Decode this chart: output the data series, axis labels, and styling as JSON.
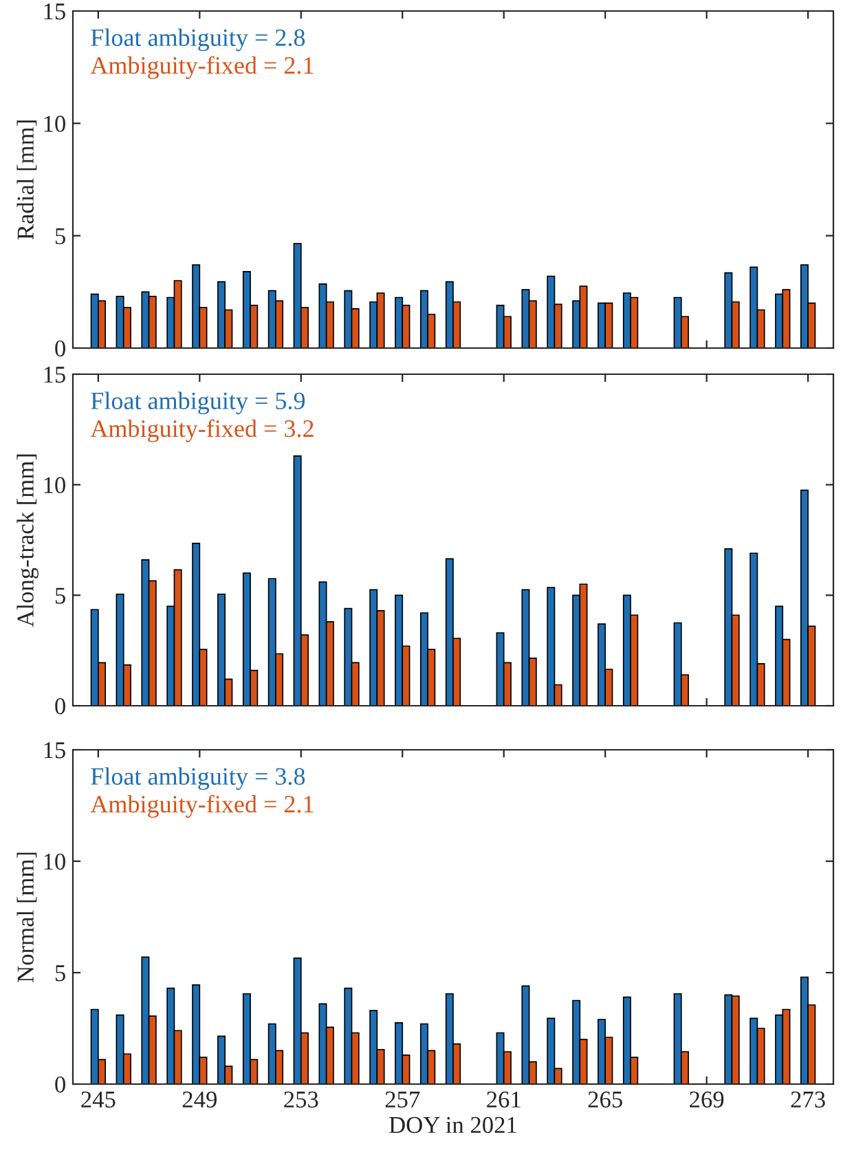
{
  "chart_data": [
    {
      "type": "bar",
      "ylabel": "Radial [mm]",
      "x": [
        245,
        246,
        247,
        248,
        249,
        250,
        251,
        252,
        253,
        254,
        255,
        256,
        257,
        258,
        259,
        261,
        262,
        263,
        264,
        265,
        266,
        268,
        270,
        271,
        272,
        273
      ],
      "series": [
        {
          "name": "Float ambiguity = 2.8",
          "color": "#1f6fb4",
          "values": [
            2.4,
            2.3,
            2.5,
            2.25,
            3.7,
            2.95,
            3.4,
            2.55,
            4.65,
            2.85,
            2.55,
            2.05,
            2.25,
            2.55,
            2.95,
            1.9,
            2.6,
            3.2,
            2.1,
            2.0,
            2.45,
            2.25,
            3.35,
            3.6,
            2.4,
            3.7
          ]
        },
        {
          "name": "Ambiguity-fixed = 2.1",
          "color": "#d95319",
          "values": [
            2.1,
            1.8,
            2.3,
            3.0,
            1.8,
            1.7,
            1.9,
            2.1,
            1.8,
            2.05,
            1.75,
            2.45,
            1.9,
            1.5,
            2.05,
            1.4,
            2.1,
            1.95,
            2.75,
            2.0,
            2.25,
            1.4,
            2.05,
            1.7,
            2.6,
            2.0
          ]
        }
      ],
      "xlim": [
        244,
        274
      ],
      "xticks": [
        245,
        249,
        253,
        257,
        261,
        265,
        269,
        273
      ],
      "ylim": [
        0,
        15
      ],
      "yticks": [
        0,
        5,
        10,
        15
      ],
      "tick_labels": "y",
      "legend": "top left"
    },
    {
      "type": "bar",
      "ylabel": "Along-track [mm]",
      "x": [
        245,
        246,
        247,
        248,
        249,
        250,
        251,
        252,
        253,
        254,
        255,
        256,
        257,
        258,
        259,
        261,
        262,
        263,
        264,
        265,
        266,
        268,
        270,
        271,
        272,
        273
      ],
      "series": [
        {
          "name": "Float ambiguity = 5.9",
          "color": "#1f6fb4",
          "values": [
            4.35,
            5.05,
            6.6,
            4.5,
            7.35,
            5.05,
            6.0,
            5.75,
            11.3,
            5.6,
            4.4,
            5.25,
            5.0,
            4.2,
            6.65,
            3.3,
            5.25,
            5.35,
            5.0,
            3.7,
            5.0,
            3.75,
            7.1,
            6.9,
            4.5,
            9.75
          ]
        },
        {
          "name": "Ambiguity-fixed = 3.2",
          "color": "#d95319",
          "values": [
            1.95,
            1.85,
            5.65,
            6.15,
            2.55,
            1.2,
            1.6,
            2.35,
            3.2,
            3.8,
            1.95,
            4.3,
            2.7,
            2.55,
            3.05,
            1.95,
            2.15,
            0.95,
            5.5,
            1.65,
            4.1,
            1.4,
            4.1,
            1.9,
            3.0,
            3.6
          ]
        }
      ],
      "xlim": [
        244,
        274
      ],
      "xticks": [
        245,
        249,
        253,
        257,
        261,
        265,
        269,
        273
      ],
      "ylim": [
        0,
        15
      ],
      "yticks": [
        0,
        5,
        10,
        15
      ],
      "tick_labels": "y",
      "legend": "top left"
    },
    {
      "type": "bar",
      "ylabel": "Normal [mm]",
      "xlabel": "DOY in 2021",
      "x": [
        245,
        246,
        247,
        248,
        249,
        250,
        251,
        252,
        253,
        254,
        255,
        256,
        257,
        258,
        259,
        261,
        262,
        263,
        264,
        265,
        266,
        268,
        270,
        271,
        272,
        273
      ],
      "series": [
        {
          "name": "Float ambiguity = 3.8",
          "color": "#1f6fb4",
          "values": [
            3.35,
            3.1,
            5.7,
            4.3,
            4.45,
            2.15,
            4.05,
            2.7,
            5.65,
            3.6,
            4.3,
            3.3,
            2.75,
            2.7,
            4.05,
            2.3,
            4.4,
            2.95,
            3.75,
            2.9,
            3.9,
            4.05,
            4.0,
            2.95,
            3.1,
            4.8
          ]
        },
        {
          "name": "Ambiguity-fixed = 2.1",
          "color": "#d95319",
          "values": [
            1.1,
            1.35,
            3.05,
            2.4,
            1.2,
            0.8,
            1.1,
            1.5,
            2.3,
            2.55,
            2.3,
            1.55,
            1.3,
            1.5,
            1.8,
            1.45,
            1.0,
            0.7,
            2.0,
            2.1,
            1.2,
            1.45,
            3.95,
            2.5,
            3.35,
            3.55
          ]
        }
      ],
      "xlim": [
        244,
        274
      ],
      "xticks": [
        245,
        249,
        253,
        257,
        261,
        265,
        269,
        273
      ],
      "ylim": [
        0,
        15
      ],
      "yticks": [
        0,
        5,
        10,
        15
      ],
      "legend": "top left"
    }
  ]
}
